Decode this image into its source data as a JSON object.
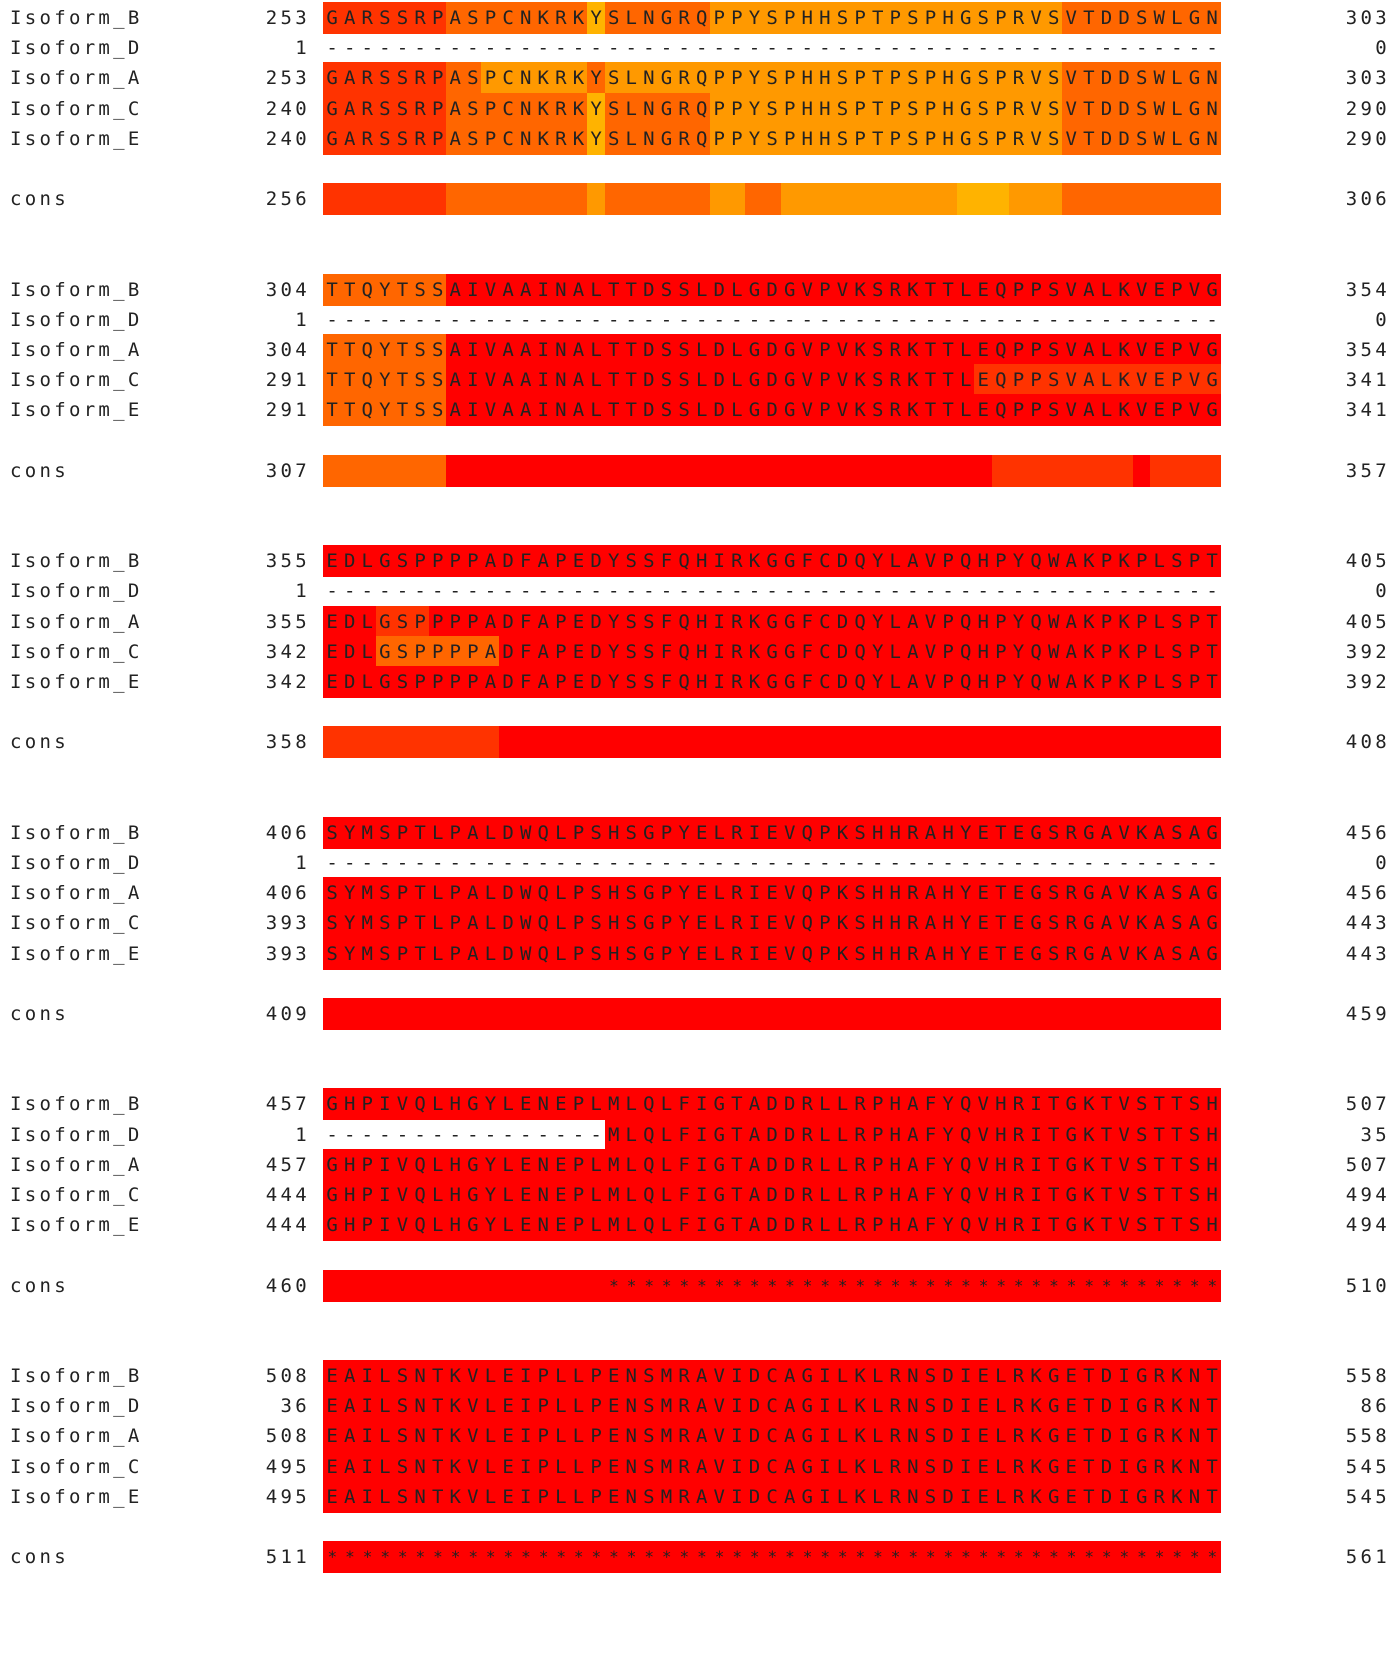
{
  "consensus_label": "cons",
  "legend": {
    "level_colors": {
      "0": "#FF0000",
      "1": "#FF3300",
      "2": "#FF6600",
      "3": "#FF9900",
      "4": "#FFB300"
    }
  },
  "blocks": [
    {
      "rows": [
        {
          "name": "Isoform_B",
          "start": "253",
          "end": "303",
          "seq": "GARSSRPASPCNKRKYSLNGRQPPYSPHHSPTPSPHGSPRVSVTDDSWLGN",
          "levels": "111111122222222422222233333333333333333333222222222"
        },
        {
          "name": "Isoform_D",
          "start": "1",
          "end": "0",
          "seq": "---------------------------------------------------",
          "levels": ""
        },
        {
          "name": "Isoform_A",
          "start": "253",
          "end": "303",
          "seq": "GARSSRPASPCNKRKYSLNGRQPPYSPHHSPTPSPHGSPRVSVTDDSWLGN",
          "levels": "111111122333333233333333333333333333333333222222222"
        },
        {
          "name": "Isoform_C",
          "start": "240",
          "end": "290",
          "seq": "GARSSRPASPCNKRKYSLNGRQPPYSPHHSPTPSPHGSPRVSVTDDSWLGN",
          "levels": "111111122222222422222233333333333333333333222222222"
        },
        {
          "name": "Isoform_E",
          "start": "240",
          "end": "290",
          "seq": "GARSSRPASPCNKRKYSLNGRQPPYSPHHSPTPSPHGSPRVSVTDDSWLGN",
          "levels": "111111122222222422222233333333333333333333222222222"
        }
      ],
      "cons": {
        "start": "256",
        "end": "306",
        "segments": [
          [
            0,
            7,
            1
          ],
          [
            7,
            15,
            2
          ],
          [
            15,
            16,
            3
          ],
          [
            16,
            22,
            2
          ],
          [
            22,
            24,
            3
          ],
          [
            24,
            26,
            2
          ],
          [
            26,
            36,
            3
          ],
          [
            36,
            39,
            4
          ],
          [
            39,
            42,
            3
          ],
          [
            42,
            51,
            2
          ]
        ],
        "stars": ""
      }
    },
    {
      "rows": [
        {
          "name": "Isoform_B",
          "start": "304",
          "end": "354",
          "seq": "TTQYTSSAIVAAINALTTDSSLDLGDGVPVKSRKTTLEQPPSVALKVEPVG",
          "levels": "222222200000000000000000000000000000000000000000000"
        },
        {
          "name": "Isoform_D",
          "start": "1",
          "end": "0",
          "seq": "---------------------------------------------------",
          "levels": ""
        },
        {
          "name": "Isoform_A",
          "start": "304",
          "end": "354",
          "seq": "TTQYTSSAIVAAINALTTDSSLDLGDGVPVKSRKTTLEQPPSVALKVEPVG",
          "levels": "222222200000000000000000000000000000000000000000000"
        },
        {
          "name": "Isoform_C",
          "start": "291",
          "end": "341",
          "seq": "TTQYTSSAIVAAINALTTDSSLDLGDGVPVKSRKTTLEQPPSVALKVEPVG",
          "levels": "222222200000000000000000000000000000011111111111111"
        },
        {
          "name": "Isoform_E",
          "start": "291",
          "end": "341",
          "seq": "TTQYTSSAIVAAINALTTDSSLDLGDGVPVKSRKTTLEQPPSVALKVEPVG",
          "levels": "222222200000000000000000000000000000000000000000000"
        }
      ],
      "cons": {
        "start": "307",
        "end": "357",
        "segments": [
          [
            0,
            7,
            2
          ],
          [
            7,
            38,
            0
          ],
          [
            38,
            46,
            1
          ],
          [
            46,
            47,
            0
          ],
          [
            47,
            51,
            1
          ]
        ],
        "stars": ""
      }
    },
    {
      "rows": [
        {
          "name": "Isoform_B",
          "start": "355",
          "end": "405",
          "seq": "EDLGSPPPPADFAPEDYSSFQHIRKGGFCDQYLAVPQHPYQWAKPKPLSPT",
          "levels": "000000000000000000000000000000000000000000000000000"
        },
        {
          "name": "Isoform_D",
          "start": "1",
          "end": "0",
          "seq": "---------------------------------------------------",
          "levels": ""
        },
        {
          "name": "Isoform_A",
          "start": "355",
          "end": "405",
          "seq": "EDLGSPPPPADFAPEDYSSFQHIRKGGFCDQYLAVPQHPYQWAKPKPLSPT",
          "levels": "000111000000000000000000000000000000000000000000000"
        },
        {
          "name": "Isoform_C",
          "start": "342",
          "end": "392",
          "seq": "EDLGSPPPPADFAPEDYSSFQHIRKGGFCDQYLAVPQHPYQWAKPKPLSPT",
          "levels": "000222222200000000000000000000000000000000000000000"
        },
        {
          "name": "Isoform_E",
          "start": "342",
          "end": "392",
          "seq": "EDLGSPPPPADFAPEDYSSFQHIRKGGFCDQYLAVPQHPYQWAKPKPLSPT",
          "levels": "000000000000000000000000000000000000000000000000000"
        }
      ],
      "cons": {
        "start": "358",
        "end": "408",
        "segments": [
          [
            0,
            10,
            1
          ],
          [
            10,
            51,
            0
          ]
        ],
        "stars": ""
      }
    },
    {
      "rows": [
        {
          "name": "Isoform_B",
          "start": "406",
          "end": "456",
          "seq": "SYMSPTLPALDWQLPSHSGPYELRIEVQPKSHHRAHYETEGSRGAVKASAG",
          "levels": "000000000000000000000000000000000000000000000000000"
        },
        {
          "name": "Isoform_D",
          "start": "1",
          "end": "0",
          "seq": "---------------------------------------------------",
          "levels": ""
        },
        {
          "name": "Isoform_A",
          "start": "406",
          "end": "456",
          "seq": "SYMSPTLPALDWQLPSHSGPYELRIEVQPKSHHRAHYETEGSRGAVKASAG",
          "levels": "000000000000000000000000000000000000000000000000000"
        },
        {
          "name": "Isoform_C",
          "start": "393",
          "end": "443",
          "seq": "SYMSPTLPALDWQLPSHSGPYELRIEVQPKSHHRAHYETEGSRGAVKASAG",
          "levels": "000000000000000000000000000000000000000000000000000"
        },
        {
          "name": "Isoform_E",
          "start": "393",
          "end": "443",
          "seq": "SYMSPTLPALDWQLPSHSGPYELRIEVQPKSHHRAHYETEGSRGAVKASAG",
          "levels": "000000000000000000000000000000000000000000000000000"
        }
      ],
      "cons": {
        "start": "409",
        "end": "459",
        "segments": [
          [
            0,
            51,
            0
          ]
        ],
        "stars": ""
      }
    },
    {
      "rows": [
        {
          "name": "Isoform_B",
          "start": "457",
          "end": "507",
          "seq": "GHPIVQLHGYLENEPLMLQLFIGTADDRLLRPHAFYQVHRITGKTVSTTSH",
          "levels": "000000000000000000000000000000000000000000000000000"
        },
        {
          "name": "Isoform_D",
          "start": "1",
          "end": "35",
          "seq": "----------------MLQLFIGTADDRLLRPHAFYQVHRITGKTVSTTSH",
          "levels": "                000000000000000000000000000000000000"
        },
        {
          "name": "Isoform_A",
          "start": "457",
          "end": "507",
          "seq": "GHPIVQLHGYLENEPLMLQLFIGTADDRLLRPHAFYQVHRITGKTVSTTSH",
          "levels": "000000000000000000000000000000000000000000000000000"
        },
        {
          "name": "Isoform_C",
          "start": "444",
          "end": "494",
          "seq": "GHPIVQLHGYLENEPLMLQLFIGTADDRLLRPHAFYQVHRITGKTVSTTSH",
          "levels": "000000000000000000000000000000000000000000000000000"
        },
        {
          "name": "Isoform_E",
          "start": "444",
          "end": "494",
          "seq": "GHPIVQLHGYLENEPLMLQLFIGTADDRLLRPHAFYQVHRITGKTVSTTSH",
          "levels": "000000000000000000000000000000000000000000000000000"
        }
      ],
      "cons": {
        "start": "460",
        "end": "510",
        "segments": [
          [
            0,
            51,
            0
          ]
        ],
        "stars": "                ***********************************"
      }
    },
    {
      "rows": [
        {
          "name": "Isoform_B",
          "start": "508",
          "end": "558",
          "seq": "EAILSNTKVLEIPLLPENSMRAVIDCAGILKLRNSDIELRKGETDIGRKNT",
          "levels": "000000000000000000000000000000000000000000000000000"
        },
        {
          "name": "Isoform_D",
          "start": "36",
          "end": "86",
          "seq": "EAILSNTKVLEIPLLPENSMRAVIDCAGILKLRNSDIELRKGETDIGRKNT",
          "levels": "000000000000000000000000000000000000000000000000000"
        },
        {
          "name": "Isoform_A",
          "start": "508",
          "end": "558",
          "seq": "EAILSNTKVLEIPLLPENSMRAVIDCAGILKLRNSDIELRKGETDIGRKNT",
          "levels": "000000000000000000000000000000000000000000000000000"
        },
        {
          "name": "Isoform_C",
          "start": "495",
          "end": "545",
          "seq": "EAILSNTKVLEIPLLPENSMRAVIDCAGILKLRNSDIELRKGETDIGRKNT",
          "levels": "000000000000000000000000000000000000000000000000000"
        },
        {
          "name": "Isoform_E",
          "start": "495",
          "end": "545",
          "seq": "EAILSNTKVLEIPLLPENSMRAVIDCAGILKLRNSDIELRKGETDIGRKNT",
          "levels": "000000000000000000000000000000000000000000000000000"
        }
      ],
      "cons": {
        "start": "511",
        "end": "561",
        "segments": [
          [
            0,
            51,
            0
          ]
        ],
        "stars": "***************************************************"
      }
    }
  ]
}
